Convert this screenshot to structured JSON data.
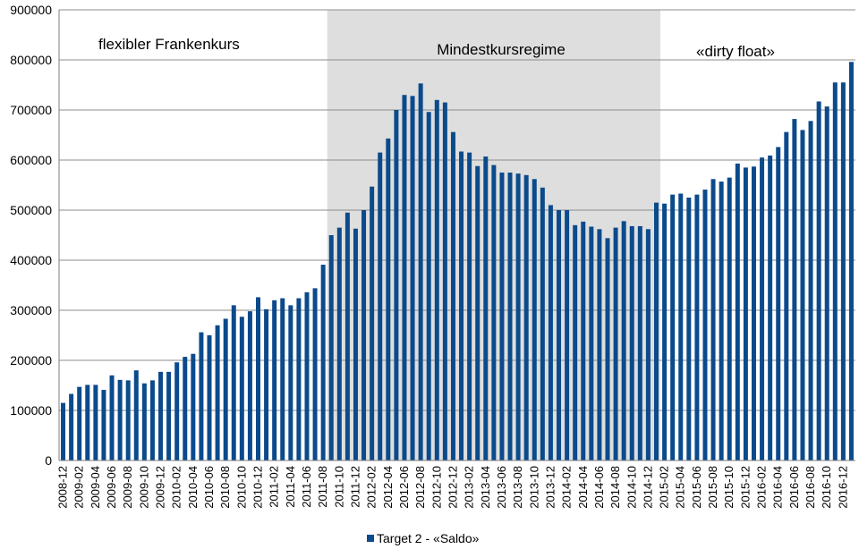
{
  "chart_data": {
    "type": "bar",
    "ylim": [
      0,
      900000
    ],
    "yticks": [
      "0",
      "100000",
      "200000",
      "300000",
      "400000",
      "500000",
      "600000",
      "700000",
      "800000",
      "900000"
    ],
    "grid": true,
    "legend_position": "bottom",
    "bar_color": "#0b4a8b",
    "shade_color": "#dedede",
    "start": "2008-12",
    "tick_labels": [
      "2008-12",
      "2009-02",
      "2009-04",
      "2009-06",
      "2009-08",
      "2009-10",
      "2009-12",
      "2010-02",
      "2010-04",
      "2010-06",
      "2010-08",
      "2010-10",
      "2010-12",
      "2011-02",
      "2011-04",
      "2011-06",
      "2011-08",
      "2011-10",
      "2011-12",
      "2012-02",
      "2012-04",
      "2012-06",
      "2012-08",
      "2012-10",
      "2012-12",
      "2013-02",
      "2013-04",
      "2013-06",
      "2013-08",
      "2013-10",
      "2013-12",
      "2014-02",
      "2014-04",
      "2014-06",
      "2014-08",
      "2014-10",
      "2014-12",
      "2015-02",
      "2015-04",
      "2015-06",
      "2015-08",
      "2015-10",
      "2015-12",
      "2016-02",
      "2016-04",
      "2016-06",
      "2016-08",
      "2016-10",
      "2016-12"
    ],
    "series": [
      {
        "name": "Target 2 - «Saldo»",
        "values": [
          115000,
          133000,
          147000,
          151000,
          151000,
          141000,
          170000,
          161000,
          160000,
          180000,
          154000,
          160000,
          177000,
          177000,
          196000,
          207000,
          213000,
          256000,
          250000,
          270000,
          283000,
          310000,
          287000,
          298000,
          326000,
          302000,
          320000,
          324000,
          310000,
          324000,
          336000,
          344000,
          391000,
          450000,
          465000,
          495000,
          463000,
          500000,
          547000,
          615000,
          643000,
          700000,
          730000,
          728000,
          753000,
          696000,
          720000,
          715000,
          656000,
          617000,
          615000,
          588000,
          607000,
          590000,
          575000,
          575000,
          573000,
          570000,
          562000,
          545000,
          510000,
          500000,
          500000,
          470000,
          477000,
          467000,
          462000,
          444000,
          465000,
          478000,
          468000,
          468000,
          462000,
          515000,
          513000,
          531000,
          533000,
          525000,
          531000,
          541000,
          562000,
          557000,
          565000,
          593000,
          585000,
          587000,
          605000,
          609000,
          626000,
          656000,
          682000,
          660000,
          678000,
          717000,
          707000,
          755000,
          755000,
          796000
        ]
      }
    ],
    "regimes": [
      {
        "label": "flexibler Frankenkurs",
        "from": "2008-12",
        "to": "2011-08"
      },
      {
        "label": "Mindestkursregime",
        "from": "2011-09",
        "to": "2015-01"
      },
      {
        "label": "«dirty float»",
        "from": "2015-02",
        "to": "2017-03"
      }
    ]
  }
}
